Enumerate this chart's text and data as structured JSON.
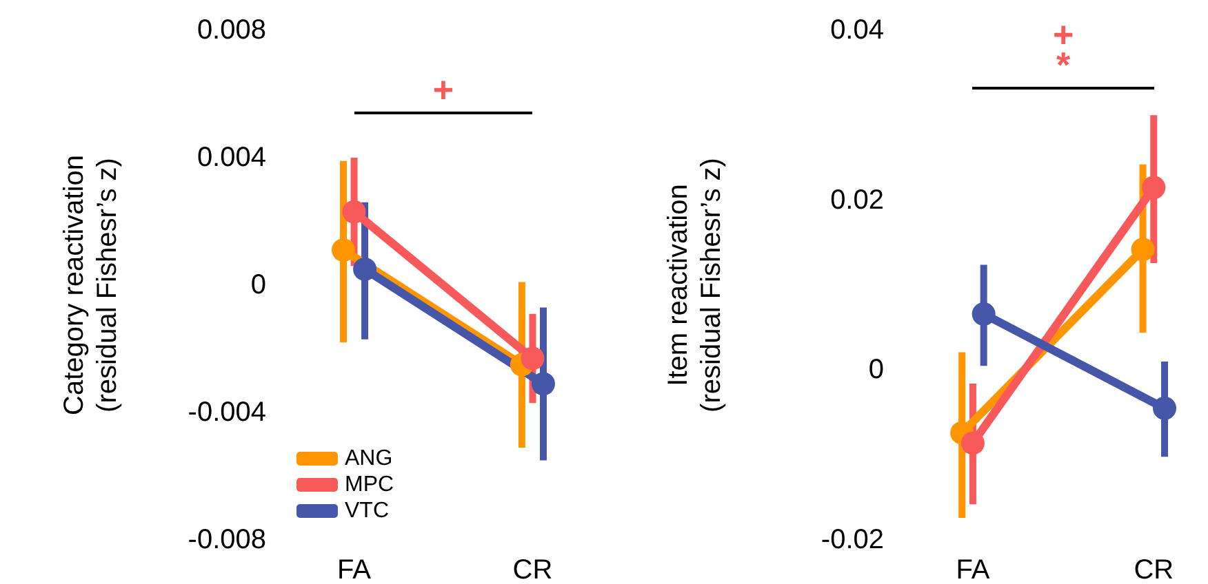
{
  "chart_data": [
    {
      "type": "line",
      "ylabel": "Category reactivation (residual Fishesr’s z)",
      "categories": [
        "FA",
        "CR"
      ],
      "ylim": [
        -0.008,
        0.008
      ],
      "yticks": [
        -0.008,
        -0.004,
        0,
        0.004,
        0.008
      ],
      "grid": false,
      "legend": "bottom left",
      "marker": "circle",
      "line_style": "solid",
      "annotations": [
        "+"
      ],
      "series": [
        {
          "name": "ANG",
          "color": "#ff9500",
          "values": [
            0.0011,
            -0.0025
          ],
          "errors": [
            [
              -0.0018,
              0.0039
            ],
            [
              -0.0051,
              0.0001
            ]
          ]
        },
        {
          "name": "MPC",
          "color": "#f85a5c",
          "values": [
            0.0023,
            -0.0023
          ],
          "errors": [
            [
              0.0006,
              0.004
            ],
            [
              -0.0037,
              -0.0009
            ]
          ]
        },
        {
          "name": "VTC",
          "color": "#4656a8",
          "values": [
            0.0005,
            -0.0031
          ],
          "errors": [
            [
              -0.0017,
              0.0026
            ],
            [
              -0.0055,
              -0.0007
            ]
          ]
        }
      ]
    },
    {
      "type": "line",
      "ylabel": "Item reactivation (residual Fishesr’s z)",
      "categories": [
        "FA",
        "CR"
      ],
      "ylim": [
        -0.02,
        0.04
      ],
      "yticks": [
        -0.02,
        0,
        0.02,
        0.04
      ],
      "grid": false,
      "legend": false,
      "marker": "circle",
      "line_style": "solid",
      "annotations": [
        "+",
        "*"
      ],
      "series": [
        {
          "color": "#ff9500",
          "values": [
            -0.0074,
            0.0142
          ],
          "errors": [
            [
              -0.0174,
              0.0021
            ],
            [
              0.0044,
              0.0242
            ]
          ]
        },
        {
          "color": "#f85a5c",
          "values": [
            -0.0086,
            0.0215
          ],
          "errors": [
            [
              -0.0158,
              -0.0016
            ],
            [
              0.0126,
              0.03
            ]
          ]
        },
        {
          "color": "#4656a8",
          "values": [
            0.0066,
            -0.0045
          ],
          "errors": [
            [
              0.0005,
              0.0124
            ],
            [
              -0.0102,
              0.001
            ]
          ]
        }
      ]
    }
  ]
}
